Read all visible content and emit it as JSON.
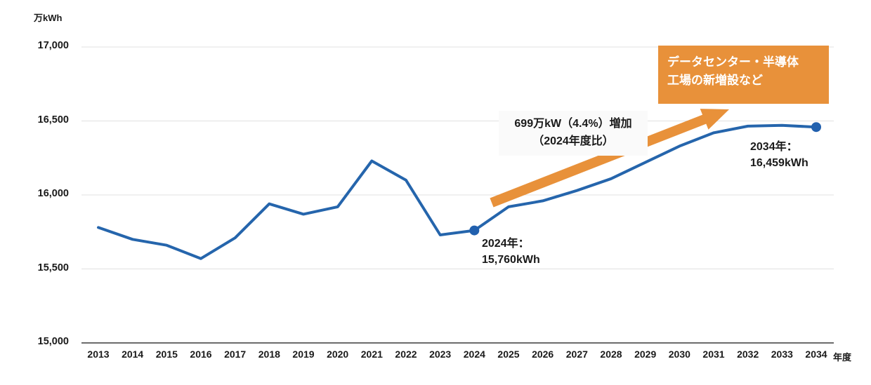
{
  "colors": {
    "line_blue": "#2565AC",
    "marker_blue": "#2160AE",
    "accent_orange": "#E8913A",
    "grid_gray": "#E0E0E0",
    "axis_dark": "#3C3C3C",
    "text_dark": "#1A1A1A",
    "note_bg": "#FAFAFA"
  },
  "chart_data": {
    "type": "line",
    "unit_label": "万kWh",
    "xaxis_suffix": "年度",
    "x": [
      2013,
      2014,
      2015,
      2016,
      2017,
      2018,
      2019,
      2020,
      2021,
      2022,
      2023,
      2024,
      2025,
      2026,
      2027,
      2028,
      2029,
      2030,
      2031,
      2032,
      2033,
      2034
    ],
    "values": [
      15780,
      15700,
      15660,
      15570,
      15710,
      15940,
      15870,
      15920,
      16230,
      16100,
      15730,
      15760,
      15920,
      15960,
      16030,
      16110,
      16220,
      16330,
      16420,
      16465,
      16470,
      16459
    ],
    "ylim": [
      15000,
      17000
    ],
    "ytick_step": 500,
    "grid": true,
    "legend": "none",
    "marked_points": [
      {
        "year": 2024,
        "value": 15760
      },
      {
        "year": 2034,
        "value": 16459
      }
    ]
  },
  "annotations": {
    "callout": {
      "line1": "データセンター・半導体",
      "line2": "工場の新増設など"
    },
    "increase_note": {
      "line1": "699万kW（4.4%）増加",
      "line2": "（2024年度比）"
    },
    "label_2024": {
      "line1": "2024年：",
      "line2": "15,760kWh"
    },
    "label_2034": {
      "line1": "2034年：",
      "line2": "16,459kWh"
    }
  }
}
